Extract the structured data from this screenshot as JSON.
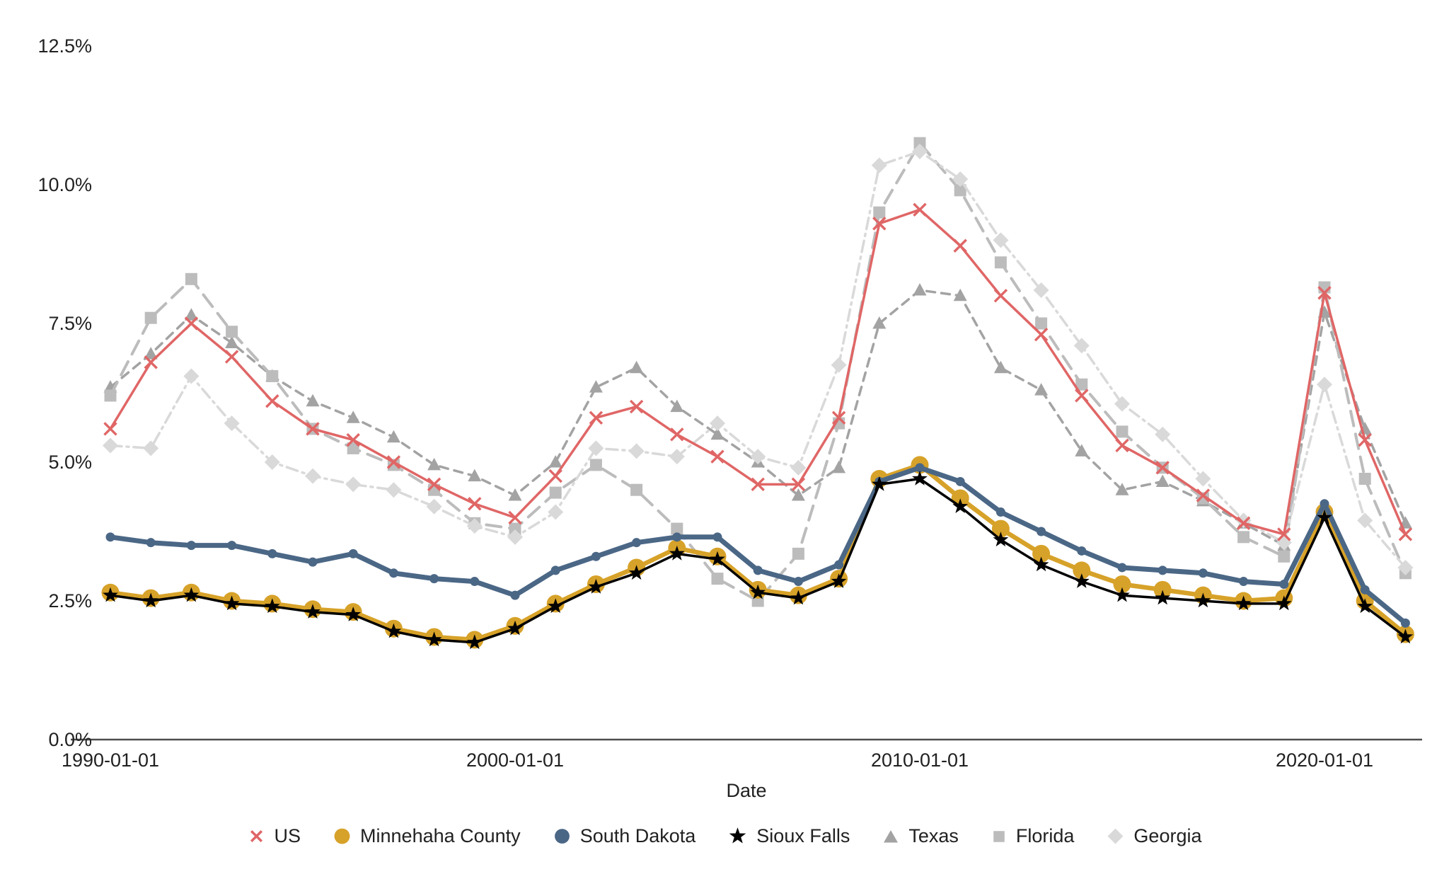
{
  "page": {
    "background": "#ffffff"
  },
  "chart_data": {
    "type": "line",
    "title": "",
    "xlabel": "Date",
    "ylabel": "",
    "grid": "off",
    "legend_position": "bottom-center",
    "axis_color": "#4d4d4d",
    "text_color": "#212121",
    "ylim": [
      0,
      13.3
    ],
    "xlim": [
      1989,
      2023
    ],
    "x_years": [
      1990,
      1991,
      1992,
      1993,
      1994,
      1995,
      1996,
      1997,
      1998,
      1999,
      2000,
      2001,
      2002,
      2003,
      2004,
      2005,
      2006,
      2007,
      2008,
      2009,
      2010,
      2011,
      2012,
      2013,
      2014,
      2015,
      2016,
      2017,
      2018,
      2019,
      2020,
      2021,
      2022
    ],
    "x_tick_labels": [
      {
        "year": 1990,
        "label": "1990-01-01"
      },
      {
        "year": 2000,
        "label": "2000-01-01"
      },
      {
        "year": 2010,
        "label": "2010-01-01"
      },
      {
        "year": 2020,
        "label": "2020-01-01"
      }
    ],
    "y_ticks": [
      {
        "value": 0,
        "label": "0.0%"
      },
      {
        "value": 2.5,
        "label": "2.5%"
      },
      {
        "value": 5,
        "label": "5.0%"
      },
      {
        "value": 7.5,
        "label": "7.5%"
      },
      {
        "value": 10,
        "label": "10.0%"
      },
      {
        "value": 12.5,
        "label": "12.5%"
      }
    ],
    "series": [
      {
        "name": "US",
        "color": "#e06666",
        "marker": "x",
        "line_style": "solid",
        "values": [
          5.6,
          6.8,
          7.5,
          6.9,
          6.1,
          5.6,
          5.4,
          5.0,
          4.6,
          4.25,
          4.0,
          4.75,
          5.8,
          6.0,
          5.5,
          5.1,
          4.6,
          4.6,
          5.8,
          9.3,
          9.55,
          8.9,
          8.0,
          7.3,
          6.2,
          5.3,
          4.9,
          4.4,
          3.9,
          3.7,
          8.05,
          5.4,
          3.7
        ]
      },
      {
        "name": "Minnehaha County",
        "color": "#d7a229",
        "marker": "circle-large",
        "line_style": "solid",
        "values": [
          2.65,
          2.55,
          2.65,
          2.5,
          2.45,
          2.35,
          2.3,
          2.0,
          1.85,
          1.8,
          2.05,
          2.45,
          2.8,
          3.1,
          3.45,
          3.3,
          2.7,
          2.6,
          2.9,
          4.7,
          4.95,
          4.35,
          3.8,
          3.35,
          3.05,
          2.8,
          2.7,
          2.6,
          2.5,
          2.55,
          4.1,
          2.5,
          1.9
        ]
      },
      {
        "name": "South Dakota",
        "color": "#4b6786",
        "marker": "circle",
        "line_style": "solid",
        "values": [
          3.65,
          3.55,
          3.5,
          3.5,
          3.35,
          3.2,
          3.35,
          3.0,
          2.9,
          2.85,
          2.6,
          3.05,
          3.3,
          3.55,
          3.65,
          3.65,
          3.05,
          2.85,
          3.15,
          4.65,
          4.9,
          4.65,
          4.1,
          3.75,
          3.4,
          3.1,
          3.05,
          3.0,
          2.85,
          2.8,
          4.25,
          2.7,
          2.1
        ]
      },
      {
        "name": "Sioux Falls",
        "color": "#000000",
        "marker": "star",
        "line_style": "solid",
        "values": [
          2.6,
          2.5,
          2.6,
          2.45,
          2.4,
          2.3,
          2.25,
          1.95,
          1.8,
          1.75,
          2.0,
          2.4,
          2.75,
          3.0,
          3.35,
          3.25,
          2.65,
          2.55,
          2.85,
          4.6,
          4.7,
          4.2,
          3.6,
          3.15,
          2.85,
          2.6,
          2.55,
          2.5,
          2.45,
          2.45,
          4.0,
          2.4,
          1.85
        ]
      },
      {
        "name": "Texas",
        "color": "#a3a3a3",
        "marker": "triangle",
        "line_style": "dashed",
        "values": [
          6.35,
          6.95,
          7.65,
          7.15,
          6.55,
          6.1,
          5.8,
          5.45,
          4.95,
          4.75,
          4.4,
          5.0,
          6.35,
          6.7,
          6.0,
          5.5,
          5.0,
          4.4,
          4.9,
          7.5,
          8.1,
          8.0,
          6.7,
          6.3,
          5.2,
          4.5,
          4.65,
          4.3,
          3.9,
          3.5,
          7.7,
          5.6,
          3.9
        ]
      },
      {
        "name": "Florida",
        "color": "#bcbcbc",
        "marker": "square",
        "line_style": "long-dash",
        "values": [
          6.2,
          7.6,
          8.3,
          7.35,
          6.55,
          5.6,
          5.25,
          4.95,
          4.5,
          3.9,
          3.8,
          4.45,
          4.95,
          4.5,
          3.8,
          2.9,
          2.5,
          3.35,
          5.7,
          9.5,
          10.75,
          9.9,
          8.6,
          7.5,
          6.4,
          5.55,
          4.9,
          4.35,
          3.65,
          3.3,
          8.15,
          4.7,
          3.0
        ]
      },
      {
        "name": "Georgia",
        "color": "#d9d9d9",
        "marker": "diamond",
        "line_style": "dash-dot",
        "values": [
          5.3,
          5.25,
          6.55,
          5.7,
          5.0,
          4.75,
          4.6,
          4.5,
          4.2,
          3.85,
          3.65,
          4.1,
          5.25,
          5.2,
          5.1,
          5.7,
          5.1,
          4.9,
          6.75,
          10.35,
          10.6,
          10.1,
          9.0,
          8.1,
          7.1,
          6.05,
          5.5,
          4.7,
          3.95,
          3.55,
          6.4,
          3.95,
          3.1
        ]
      }
    ]
  }
}
